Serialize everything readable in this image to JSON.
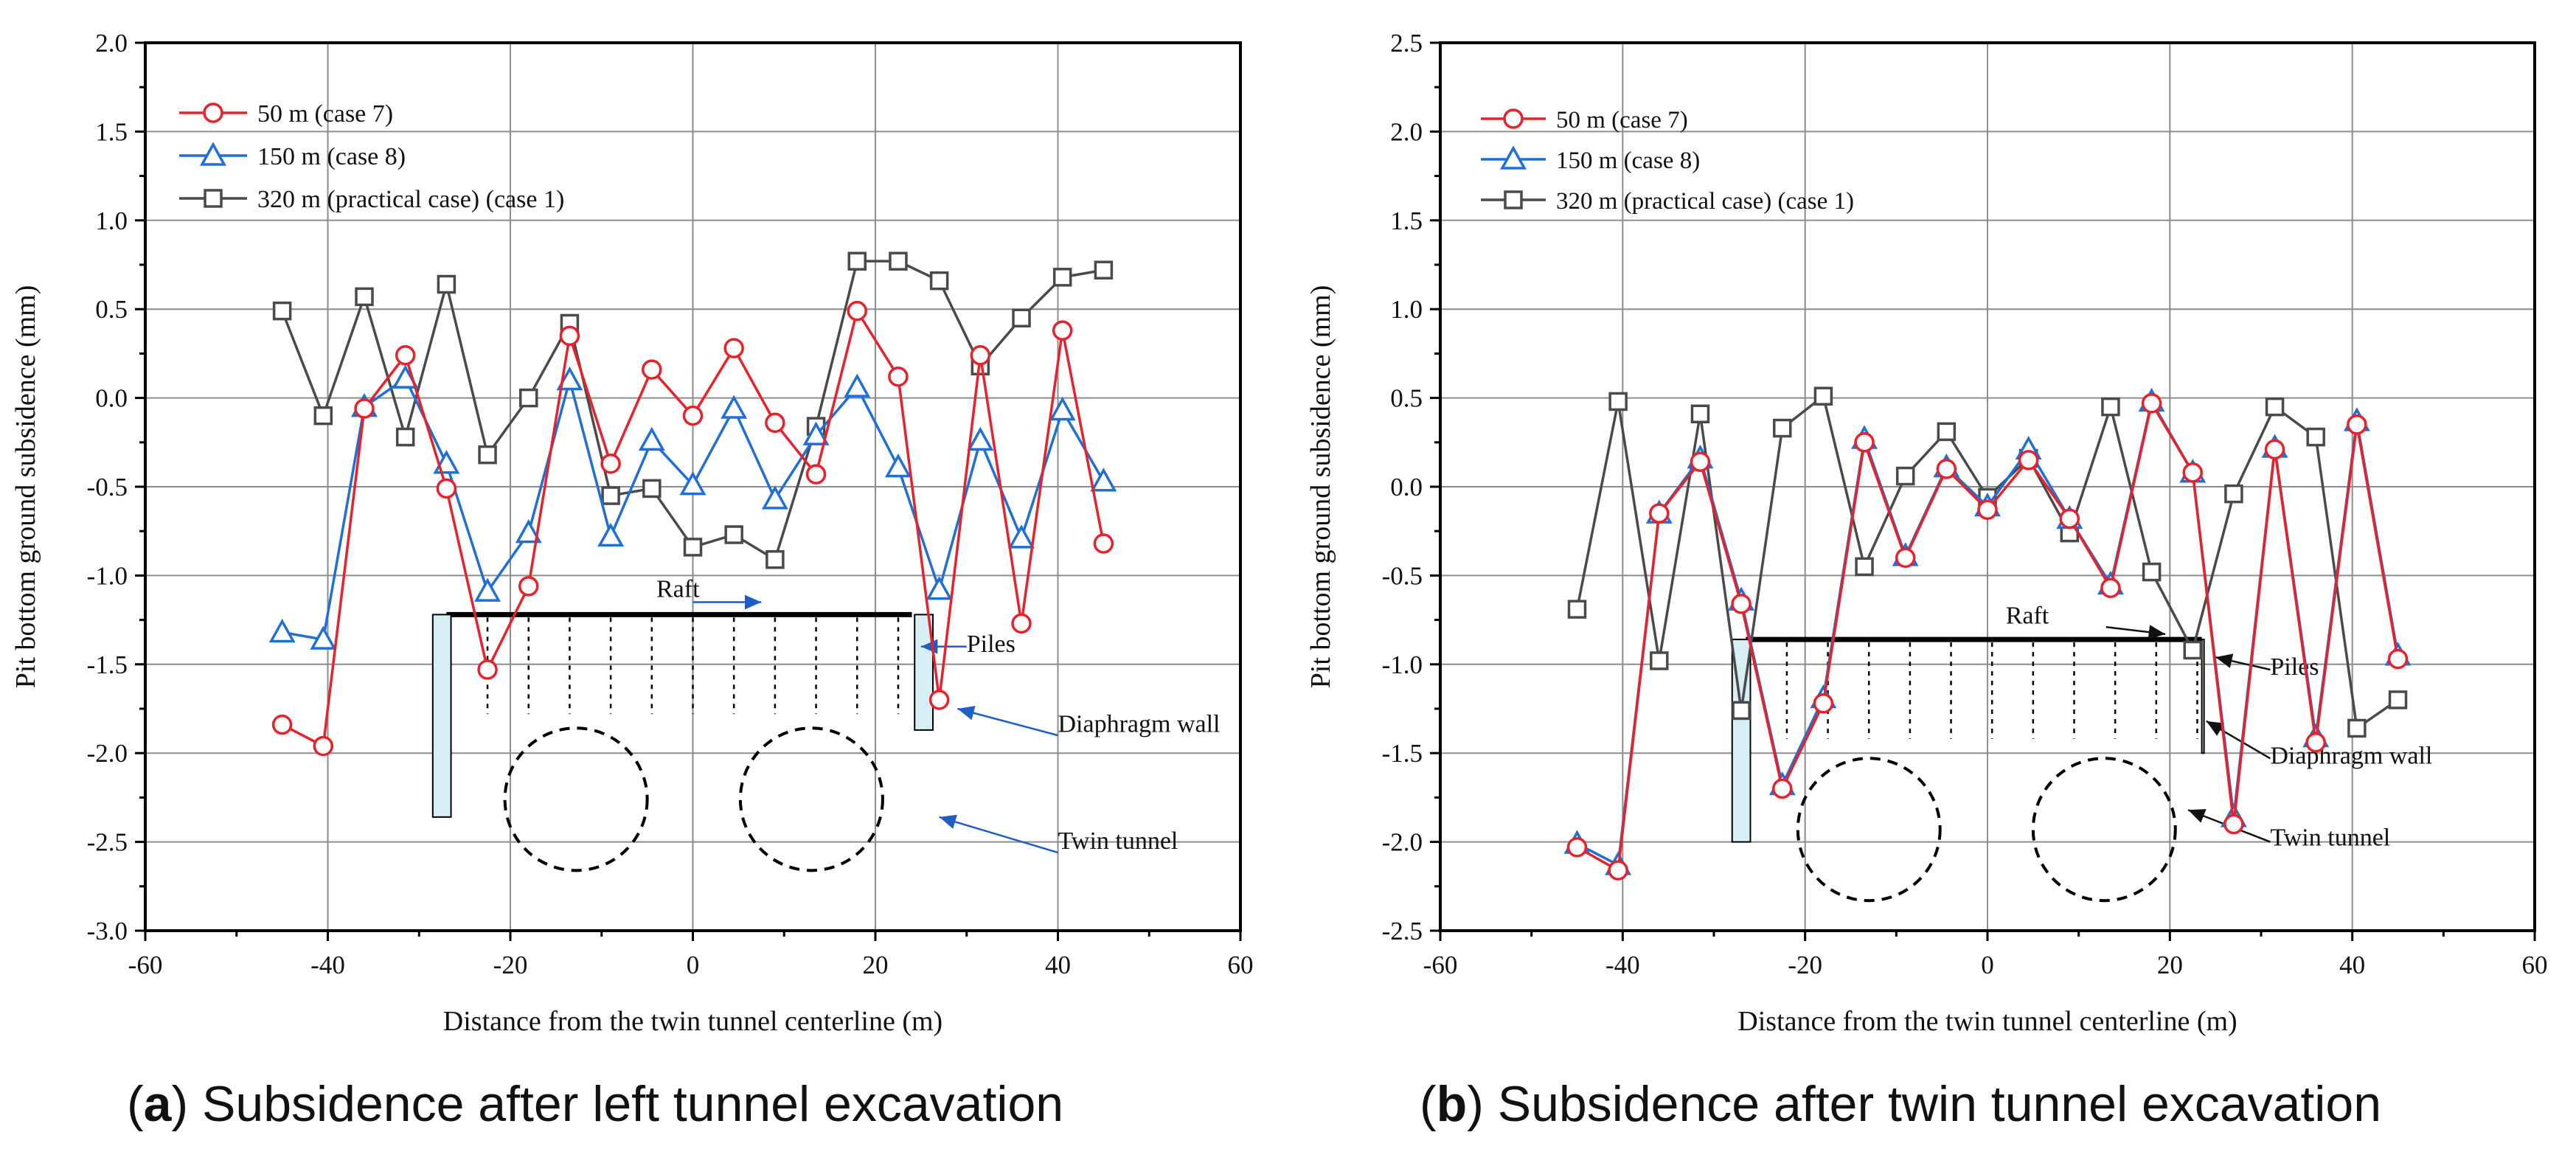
{
  "chart_data": [
    {
      "type": "line",
      "panel": "a",
      "caption_letter": "a",
      "caption_text": " Subsidence after left tunnel excavation",
      "xlabel": "Distance from the twin tunnel centerline (m)",
      "ylabel": "Pit bottom ground subsidence  (mm)",
      "xlim": [
        -60,
        60
      ],
      "ylim": [
        -3.0,
        2.0
      ],
      "xticks": [
        -60,
        -40,
        -20,
        0,
        20,
        40,
        60
      ],
      "yticks": [
        -3.0,
        -2.5,
        -2.0,
        -1.5,
        -1.0,
        -0.5,
        0.0,
        0.5,
        1.0,
        1.5,
        2.0
      ],
      "grid": true,
      "legend_position": "top-left",
      "series": [
        {
          "name": "50 m  (case 7)",
          "color": "#e8212a",
          "marker": "circle",
          "x": [
            -45,
            -40.5,
            -36,
            -31.5,
            -27,
            -22.5,
            -18,
            -13.5,
            -9,
            -4.5,
            0,
            4.5,
            9,
            13.5,
            18,
            22.5,
            27,
            31.5,
            36,
            40.5,
            45
          ],
          "values": [
            -1.84,
            -1.96,
            -0.06,
            0.24,
            -0.51,
            -1.53,
            -1.06,
            0.35,
            -0.37,
            0.16,
            -0.1,
            0.28,
            -0.14,
            -0.43,
            0.49,
            0.12,
            -1.7,
            0.24,
            -1.27,
            0.38,
            -0.82
          ]
        },
        {
          "name": "150 m (case 8)",
          "color": "#1f6fd6",
          "marker": "triangle",
          "x": [
            -45,
            -40.5,
            -36,
            -31.5,
            -27,
            -22.5,
            -18,
            -13.5,
            -9,
            -4.5,
            0,
            4.5,
            9,
            13.5,
            18,
            22.5,
            27,
            31.5,
            36,
            40.5,
            45
          ],
          "values": [
            -1.32,
            -1.36,
            -0.05,
            0.11,
            -0.37,
            -1.09,
            -0.76,
            0.1,
            -0.78,
            -0.24,
            -0.49,
            -0.06,
            -0.57,
            -0.21,
            0.06,
            -0.39,
            -1.08,
            -0.24,
            -0.79,
            -0.07,
            -0.47
          ]
        },
        {
          "name": "320 m (practical case)  (case 1)",
          "color": "#4a4a4a",
          "marker": "square",
          "x": [
            -45,
            -40.5,
            -36,
            -31.5,
            -27,
            -22.5,
            -18,
            -13.5,
            -9,
            -4.5,
            0,
            4.5,
            9,
            13.5,
            18,
            22.5,
            27,
            31.5,
            36,
            40.5,
            45
          ],
          "values": [
            0.49,
            -0.1,
            0.57,
            -0.22,
            0.64,
            -0.32,
            0.0,
            0.42,
            -0.55,
            -0.51,
            -0.84,
            -0.77,
            -0.91,
            -0.16,
            0.77,
            0.77,
            0.66,
            0.18,
            0.45,
            0.68,
            0.72
          ]
        }
      ],
      "annotations": {
        "raft": "Raft",
        "piles": "Piles",
        "wall": "Diaphragm wall",
        "tunnel": "Twin tunnel"
      },
      "schematic": {
        "raft_x": [
          -27,
          24
        ],
        "raft_y": -1.22,
        "pile_x": [
          -22.5,
          -18,
          -13.5,
          -9,
          -4.5,
          0,
          4.5,
          9,
          13.5,
          18,
          22.5
        ],
        "pile_bottom_y": -1.78,
        "left_wall": {
          "x": [
            -28.5,
            -26.5
          ],
          "y": [
            -1.22,
            -2.36
          ]
        },
        "right_wall": {
          "x": [
            24.3,
            26.3
          ],
          "y": [
            -1.22,
            -1.87
          ]
        },
        "tunnels": [
          {
            "cx": -12.8,
            "cy": -2.26,
            "r": 7.8
          },
          {
            "cx": 13.0,
            "cy": -2.26,
            "r": 7.8
          }
        ]
      }
    },
    {
      "type": "line",
      "panel": "b",
      "caption_letter": "b",
      "caption_text": " Subsidence after twin tunnel excavation",
      "xlabel": "Distance from the twin tunnel centerline (m)",
      "ylabel": "Pit bottom ground subsidence  (mm)",
      "xlim": [
        -60,
        60
      ],
      "ylim": [
        -2.5,
        2.5
      ],
      "xticks": [
        -60,
        -40,
        -20,
        0,
        20,
        40,
        60
      ],
      "yticks": [
        -2.5,
        -2.0,
        -1.5,
        -1.0,
        -0.5,
        0.0,
        0.5,
        1.0,
        1.5,
        2.0,
        2.5
      ],
      "grid": true,
      "legend_position": "top-left",
      "series": [
        {
          "name": "50 m (case 7)",
          "color": "#e8212a",
          "marker": "circle",
          "x": [
            -45,
            -40.5,
            -36,
            -31.5,
            -27,
            -22.5,
            -18,
            -13.5,
            -9,
            -4.5,
            0,
            4.5,
            9,
            13.5,
            18,
            22.5,
            27,
            31.5,
            36,
            40.5,
            45
          ],
          "values": [
            -2.03,
            -2.16,
            -0.15,
            0.14,
            -0.66,
            -1.7,
            -1.22,
            0.25,
            -0.4,
            0.1,
            -0.13,
            0.15,
            -0.18,
            -0.57,
            0.47,
            0.08,
            -1.9,
            0.21,
            -1.44,
            0.35,
            -0.97
          ]
        },
        {
          "name": "150 m (case 8)",
          "color": "#1f6fd6",
          "marker": "triangle",
          "x": [
            -45,
            -40.5,
            -36,
            -31.5,
            -27,
            -22.5,
            -18,
            -13.5,
            -9,
            -4.5,
            0,
            4.5,
            9,
            13.5,
            18,
            22.5,
            27,
            31.5,
            36,
            40.5,
            45
          ],
          "values": [
            -2.01,
            -2.13,
            -0.15,
            0.16,
            -0.64,
            -1.68,
            -1.19,
            0.27,
            -0.39,
            0.11,
            -0.11,
            0.21,
            -0.18,
            -0.55,
            0.48,
            0.08,
            -1.86,
            0.22,
            -1.41,
            0.37,
            -0.95
          ]
        },
        {
          "name": "320 m (practical case) (case 1)",
          "color": "#4a4a4a",
          "marker": "square",
          "x": [
            -45,
            -40.5,
            -36,
            -31.5,
            -27,
            -22.5,
            -18,
            -13.5,
            -9,
            -4.5,
            0,
            4.5,
            9,
            13.5,
            18,
            22.5,
            27,
            31.5,
            36,
            40.5,
            45
          ],
          "values": [
            -0.69,
            0.48,
            -0.98,
            0.41,
            -1.26,
            0.33,
            0.51,
            -0.45,
            0.06,
            0.31,
            -0.06,
            0.16,
            -0.26,
            0.45,
            -0.48,
            -0.92,
            -0.04,
            0.45,
            0.28,
            -1.36,
            -1.2
          ]
        }
      ],
      "annotations": {
        "raft": "Raft",
        "piles": "Piles",
        "wall": "Diaphragm wall",
        "tunnel": "Twin tunnel"
      },
      "schematic": {
        "raft_x": [
          -26.5,
          23.5
        ],
        "raft_y": -0.86,
        "pile_x": [
          -22,
          -17.5,
          -13,
          -8.5,
          -4,
          0.5,
          5,
          9.5,
          14,
          18.5,
          23
        ],
        "pile_bottom_y": -1.42,
        "left_wall": {
          "x": [
            -28,
            -26
          ],
          "y": [
            -0.86,
            -2.0
          ]
        },
        "right_wall": {
          "x": [
            23.5,
            23.5
          ],
          "y": [
            -0.86,
            -1.5
          ]
        },
        "tunnels": [
          {
            "cx": -13.0,
            "cy": -1.93,
            "r": 7.8
          },
          {
            "cx": 12.8,
            "cy": -1.93,
            "r": 7.8
          }
        ]
      }
    }
  ]
}
